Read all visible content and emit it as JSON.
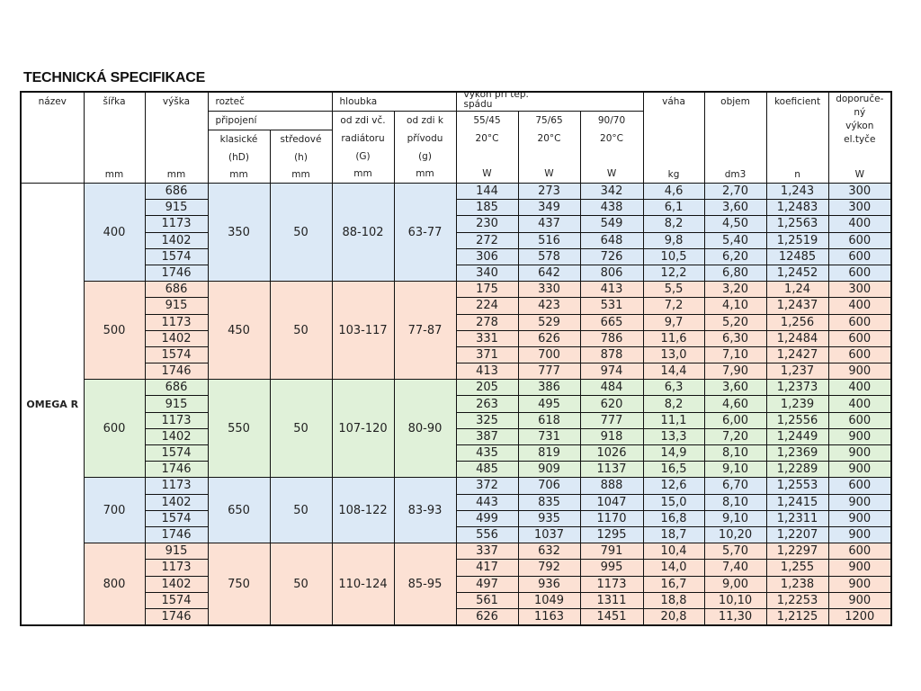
{
  "title": "TECHNICKÁ SPECIFIKACE",
  "header": {
    "nazev": "název",
    "sirka": "šířka",
    "sirka_unit": "mm",
    "vyska": "výška",
    "vyska_unit": "mm",
    "roztec": "rozteč",
    "pripojeni": "připojení",
    "klasicke": [
      "klasické",
      "(hD)"
    ],
    "klasicke_unit": "mm",
    "stredove": [
      "středové",
      "(h)"
    ],
    "stredove_unit": "mm",
    "hloubka": "hloubka",
    "od_zdi_vc": [
      "od zdi  vč.",
      "radiátoru",
      "(G)"
    ],
    "od_zdi_vc_unit": "mm",
    "od_zdi_k": [
      "od zdi  k",
      "přívodu",
      "(g)"
    ],
    "od_zdi_k_unit": "mm",
    "vykon": "výkon při tep. spádu",
    "t55": [
      "55/45",
      "20°C"
    ],
    "t55_unit": "W",
    "t75": [
      "75/65",
      "20°C"
    ],
    "t75_unit": "W",
    "t90": [
      "90/70",
      "20°C"
    ],
    "t90_unit": "W",
    "vaha": "váha",
    "vaha_unit": "kg",
    "objem": "objem",
    "objem_unit": "dm3",
    "koeficient": "koeficient",
    "koeficient_unit": "n",
    "doporuceny": [
      "doporuče-",
      "ný",
      "výkon",
      "el.tyče"
    ],
    "doporuceny_unit": "W"
  },
  "model": "OMEGA R",
  "colors": {
    "blue": "#dce9f6",
    "peach": "#fce1d4",
    "green": "#e0f1d9",
    "border": "#111111"
  },
  "groups": [
    {
      "sirka": "400",
      "klasicke": "350",
      "stredove": "50",
      "G": "88-102",
      "g": "63-77",
      "color": "#dce9f6",
      "rows": [
        [
          "686",
          "144",
          "273",
          "342",
          "4,6",
          "2,70",
          "1,243",
          "300"
        ],
        [
          "915",
          "185",
          "349",
          "438",
          "6,1",
          "3,60",
          "1,2483",
          "300"
        ],
        [
          "1173",
          "230",
          "437",
          "549",
          "8,2",
          "4,50",
          "1,2563",
          "400"
        ],
        [
          "1402",
          "272",
          "516",
          "648",
          "9,8",
          "5,40",
          "1,2519",
          "600"
        ],
        [
          "1574",
          "306",
          "578",
          "726",
          "10,5",
          "6,20",
          "12485",
          "600"
        ],
        [
          "1746",
          "340",
          "642",
          "806",
          "12,2",
          "6,80",
          "1,2452",
          "600"
        ]
      ]
    },
    {
      "sirka": "500",
      "klasicke": "450",
      "stredove": "50",
      "G": "103-117",
      "g": "77-87",
      "color": "#fce1d4",
      "rows": [
        [
          "686",
          "175",
          "330",
          "413",
          "5,5",
          "3,20",
          "1,24",
          "300"
        ],
        [
          "915",
          "224",
          "423",
          "531",
          "7,2",
          "4,10",
          "1,2437",
          "400"
        ],
        [
          "1173",
          "278",
          "529",
          "665",
          "9,7",
          "5,20",
          "1,256",
          "600"
        ],
        [
          "1402",
          "331",
          "626",
          "786",
          "11,6",
          "6,30",
          "1,2484",
          "600"
        ],
        [
          "1574",
          "371",
          "700",
          "878",
          "13,0",
          "7,10",
          "1,2427",
          "600"
        ],
        [
          "1746",
          "413",
          "777",
          "974",
          "14,4",
          "7,90",
          "1,237",
          "900"
        ]
      ]
    },
    {
      "sirka": "600",
      "klasicke": "550",
      "stredove": "50",
      "G": "107-120",
      "g": "80-90",
      "color": "#e0f1d9",
      "rows": [
        [
          "686",
          "205",
          "386",
          "484",
          "6,3",
          "3,60",
          "1,2373",
          "400"
        ],
        [
          "915",
          "263",
          "495",
          "620",
          "8,2",
          "4,60",
          "1,239",
          "400"
        ],
        [
          "1173",
          "325",
          "618",
          "777",
          "11,1",
          "6,00",
          "1,2556",
          "600"
        ],
        [
          "1402",
          "387",
          "731",
          "918",
          "13,3",
          "7,20",
          "1,2449",
          "900"
        ],
        [
          "1574",
          "435",
          "819",
          "1026",
          "14,9",
          "8,10",
          "1,2369",
          "900"
        ],
        [
          "1746",
          "485",
          "909",
          "1137",
          "16,5",
          "9,10",
          "1,2289",
          "900"
        ]
      ]
    },
    {
      "sirka": "700",
      "klasicke": "650",
      "stredove": "50",
      "G": "108-122",
      "g": "83-93",
      "color": "#dce9f6",
      "rows": [
        [
          "1173",
          "372",
          "706",
          "888",
          "12,6",
          "6,70",
          "1,2553",
          "600"
        ],
        [
          "1402",
          "443",
          "835",
          "1047",
          "15,0",
          "8,10",
          "1,2415",
          "900"
        ],
        [
          "1574",
          "499",
          "935",
          "1170",
          "16,8",
          "9,10",
          "1,2311",
          "900"
        ],
        [
          "1746",
          "556",
          "1037",
          "1295",
          "18,7",
          "10,20",
          "1,2207",
          "900"
        ]
      ]
    },
    {
      "sirka": "800",
      "klasicke": "750",
      "stredove": "50",
      "G": "110-124",
      "g": "85-95",
      "color": "#fce1d4",
      "rows": [
        [
          "915",
          "337",
          "632",
          "791",
          "10,4",
          "5,70",
          "1,2297",
          "600"
        ],
        [
          "1173",
          "417",
          "792",
          "995",
          "14,0",
          "7,40",
          "1,255",
          "900"
        ],
        [
          "1402",
          "497",
          "936",
          "1173",
          "16,7",
          "9,00",
          "1,238",
          "900"
        ],
        [
          "1574",
          "561",
          "1049",
          "1311",
          "18,8",
          "10,10",
          "1,2253",
          "900"
        ],
        [
          "1746",
          "626",
          "1163",
          "1451",
          "20,8",
          "11,30",
          "1,2125",
          "1200"
        ]
      ]
    }
  ]
}
